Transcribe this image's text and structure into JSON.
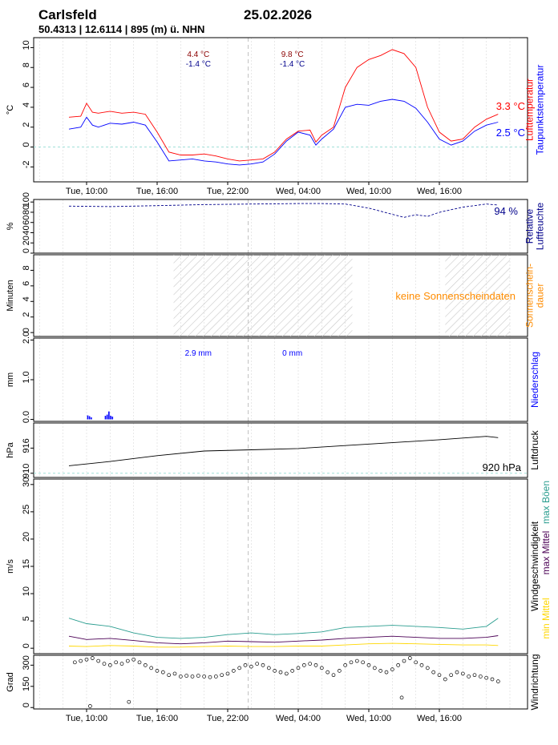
{
  "header": {
    "station": "Carlsfeld",
    "date": "25.02.2026",
    "location": "50.4313 | 12.6114 | 895 (m) ü. NHN"
  },
  "colors": {
    "air_temp": "#ff0000",
    "dew_point": "#0000ff",
    "humidity": "#00008b",
    "sunshine": "#ff8c00",
    "precip": "#0000ff",
    "pressure": "#000000",
    "wind_gust": "#2a9d8f",
    "wind_max_mean": "#4b0055",
    "wind_min_mean": "#ffd700",
    "wind_dir": "#000000",
    "zero_line": "#a0e0d8",
    "grid": "#d8d8d8"
  },
  "time_ticks": {
    "top": [
      "Tue, 10:00",
      "Tue, 16:00",
      "Tue, 22:00",
      "Wed, 04:00",
      "Wed, 10:00",
      "Wed, 16:00"
    ],
    "bottom": [
      "Tue, 10:00",
      "Tue, 16:00",
      "Tue, 22:00",
      "Wed, 04:00",
      "Wed, 10:00",
      "Wed, 16:00"
    ]
  },
  "chart_data": [
    {
      "type": "line",
      "panel": "temperature",
      "ylabel": "°C",
      "ylim": [
        -3.5,
        11
      ],
      "yticks": [
        "-2",
        "0",
        "2",
        "4",
        "6",
        "8",
        "10"
      ],
      "right_labels": [
        "Lufttemperatur",
        "Taupunktstemperatur"
      ],
      "last_values": [
        "3.3 °C",
        "2.5 °C"
      ],
      "day_stats": [
        {
          "max": "4.4 °C",
          "min": "-1.4 °C"
        },
        {
          "max": "9.8 °C",
          "min": "-1.4 °C"
        }
      ],
      "x": [
        8.5,
        9.5,
        10,
        10.5,
        11,
        12,
        13,
        14,
        15,
        16,
        17,
        18,
        19,
        20,
        21,
        22,
        23,
        24,
        25,
        26,
        27,
        28,
        29,
        29.5,
        30,
        31,
        32,
        33,
        34,
        35,
        36,
        37,
        38,
        39,
        40,
        41,
        42,
        43,
        44,
        45
      ],
      "series": [
        {
          "name": "Lufttemperatur",
          "values": [
            3.0,
            3.1,
            4.4,
            3.5,
            3.4,
            3.6,
            3.4,
            3.5,
            3.3,
            1.5,
            -0.5,
            -0.8,
            -0.8,
            -0.7,
            -0.9,
            -1.2,
            -1.4,
            -1.3,
            -1.2,
            -0.5,
            0.8,
            1.6,
            1.7,
            0.5,
            1.2,
            2.0,
            6.0,
            8.0,
            8.8,
            9.2,
            9.8,
            9.4,
            8.0,
            4.0,
            1.5,
            0.6,
            0.8,
            2.0,
            2.8,
            3.3
          ]
        },
        {
          "name": "Taupunktstemperatur",
          "values": [
            1.8,
            2.0,
            3.0,
            2.2,
            2.0,
            2.4,
            2.3,
            2.5,
            2.2,
            0.5,
            -1.4,
            -1.3,
            -1.2,
            -1.4,
            -1.5,
            -1.7,
            -1.8,
            -1.7,
            -1.5,
            -0.7,
            0.6,
            1.5,
            1.2,
            0.2,
            0.8,
            1.8,
            4.0,
            4.3,
            4.2,
            4.6,
            4.8,
            4.6,
            3.9,
            2.5,
            0.8,
            0.2,
            0.6,
            1.6,
            2.2,
            2.5
          ]
        }
      ]
    },
    {
      "type": "line",
      "panel": "humidity",
      "ylabel": "%",
      "ylim": [
        0,
        105
      ],
      "yticks": [
        "0",
        "20",
        "40",
        "60",
        "80",
        "100"
      ],
      "right_label": "Relative Luftfeuchte",
      "last_value": "94 %",
      "x": [
        8.5,
        12,
        16,
        20,
        24,
        28,
        30,
        32,
        34,
        36,
        37,
        38,
        39,
        40,
        42,
        44,
        45
      ],
      "values": [
        92,
        91,
        93,
        95,
        96,
        97,
        97,
        96,
        88,
        76,
        70,
        75,
        72,
        80,
        90,
        96,
        94
      ]
    },
    {
      "type": "area",
      "panel": "sunshine",
      "ylabel": "Minuten",
      "ylim": [
        -0.5,
        10
      ],
      "yticks": [
        "0",
        "2",
        "4",
        "6",
        "8"
      ],
      "right_label": "Sonnenschein-dauer",
      "no_data_note": "keine Sonnenscheindaten",
      "night_ranges": [
        [
          17.4,
          32.6
        ],
        [
          40.5,
          47.0
        ]
      ]
    },
    {
      "type": "bar",
      "panel": "precipitation",
      "ylabel": "mm",
      "ylim": [
        -0.05,
        2.05
      ],
      "yticks": [
        "0.0",
        "1.0",
        "2.0"
      ],
      "right_label": "Niederschlag",
      "day_totals": [
        "2.9 mm",
        "0 mm"
      ],
      "x": [
        10.1,
        10.25,
        10.4,
        11.6,
        11.75,
        11.9,
        12.05,
        12.2
      ],
      "values": [
        0.1,
        0.08,
        0.05,
        0.09,
        0.12,
        0.2,
        0.09,
        0.07
      ]
    },
    {
      "type": "line",
      "panel": "pressure",
      "ylabel": "hPa",
      "ylim": [
        909,
        922
      ],
      "yticks": [
        "910",
        "916"
      ],
      "right_label": "Luftdruck",
      "reference": "920 hPa",
      "x": [
        8.5,
        12,
        16,
        20,
        24,
        28,
        32,
        36,
        40,
        44,
        45
      ],
      "values": [
        911.8,
        912.8,
        914.2,
        915.3,
        915.6,
        915.9,
        916.6,
        917.3,
        918.0,
        918.8,
        918.5
      ]
    },
    {
      "type": "line",
      "panel": "wind_speed",
      "ylabel": "m/s",
      "ylim": [
        -1,
        31
      ],
      "yticks": [
        "0",
        "5",
        "10",
        "15",
        "20",
        "25",
        "30"
      ],
      "right_labels": [
        "Windgeschwindigkeit",
        "max Mittel",
        "max Böen",
        "min Mittel"
      ],
      "x": [
        8.5,
        10,
        12,
        14,
        16,
        18,
        20,
        22,
        24,
        26,
        28,
        30,
        32,
        34,
        36,
        38,
        40,
        42,
        44,
        45
      ],
      "series": [
        {
          "name": "max Böen",
          "values": [
            5.5,
            4.5,
            4.0,
            2.8,
            2.0,
            1.8,
            2.0,
            2.5,
            2.8,
            2.5,
            2.7,
            3.0,
            3.8,
            4.0,
            4.2,
            4.0,
            3.8,
            3.5,
            4.0,
            5.5
          ]
        },
        {
          "name": "max Mittel",
          "values": [
            2.2,
            1.6,
            1.8,
            1.4,
            1.0,
            0.8,
            1.0,
            1.3,
            1.2,
            1.1,
            1.3,
            1.5,
            1.8,
            2.0,
            2.2,
            2.0,
            1.8,
            1.8,
            2.0,
            2.3
          ]
        },
        {
          "name": "min Mittel",
          "values": [
            0.4,
            0.3,
            0.5,
            0.4,
            0.2,
            0.2,
            0.3,
            0.4,
            0.3,
            0.3,
            0.4,
            0.4,
            0.6,
            0.8,
            0.9,
            0.8,
            0.7,
            0.6,
            0.6,
            0.5
          ]
        }
      ]
    },
    {
      "type": "scatter",
      "panel": "wind_direction",
      "ylabel": "Grad",
      "ylim": [
        -10,
        370
      ],
      "yticks": [
        "0",
        "150",
        "300"
      ],
      "right_label": "Windrichtung",
      "x": [
        9,
        9.5,
        10,
        10.5,
        11,
        11.5,
        12,
        12.5,
        13,
        13.5,
        14,
        14.5,
        15,
        15.5,
        16,
        16.5,
        17,
        17.5,
        18,
        18.5,
        19,
        19.5,
        20,
        20.5,
        21,
        21.5,
        22,
        22.5,
        23,
        23.5,
        24,
        24.5,
        25,
        25.5,
        26,
        26.5,
        27,
        27.5,
        28,
        28.5,
        29,
        29.5,
        30,
        30.5,
        31,
        31.5,
        32,
        32.5,
        33,
        33.5,
        34,
        34.5,
        35,
        35.5,
        36,
        36.5,
        37,
        37.5,
        38,
        38.5,
        39,
        39.5,
        40,
        40.5,
        41,
        41.5,
        42,
        42.5,
        43,
        43.5,
        44,
        44.5,
        45,
        10.3,
        13.6,
        36.8
      ],
      "values": [
        320,
        330,
        340,
        350,
        330,
        310,
        300,
        320,
        310,
        330,
        340,
        320,
        300,
        280,
        260,
        250,
        230,
        240,
        220,
        225,
        220,
        225,
        220,
        215,
        220,
        230,
        240,
        260,
        280,
        300,
        290,
        310,
        300,
        280,
        260,
        250,
        240,
        260,
        280,
        300,
        310,
        300,
        280,
        250,
        230,
        260,
        300,
        320,
        330,
        320,
        300,
        280,
        260,
        250,
        270,
        300,
        330,
        350,
        320,
        300,
        280,
        250,
        230,
        200,
        230,
        250,
        240,
        220,
        230,
        220,
        210,
        200,
        185,
        10,
        40,
        70
      ]
    }
  ]
}
